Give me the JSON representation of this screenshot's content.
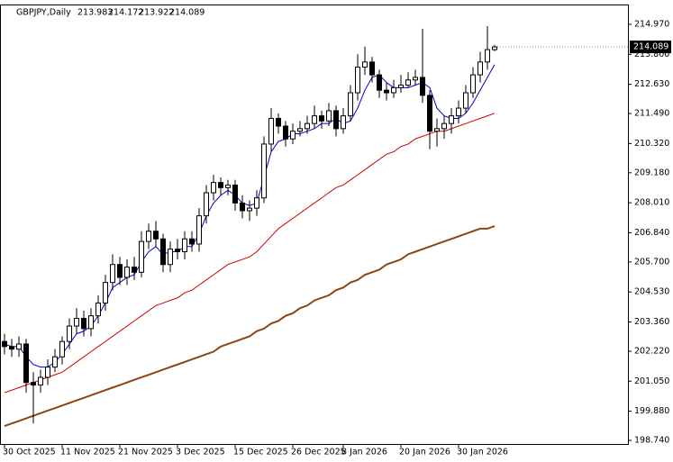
{
  "chart_data": {
    "type": "candlestick",
    "title": "GBPJPY,Daily",
    "categories": [
      "30 Oct 2025",
      null,
      null,
      null,
      null,
      null,
      null,
      null,
      "11 Nov 2025",
      null,
      null,
      null,
      null,
      null,
      null,
      null,
      "21 Nov 2025",
      null,
      null,
      null,
      null,
      null,
      null,
      null,
      "3 Dec 2025",
      null,
      null,
      null,
      null,
      null,
      null,
      null,
      "15 Dec 2025",
      null,
      null,
      null,
      null,
      null,
      null,
      null,
      "26 Dec 2025",
      null,
      null,
      null,
      null,
      null,
      null,
      "8 Jan 2026",
      null,
      null,
      null,
      null,
      null,
      null,
      null,
      "20 Jan 2026",
      null,
      null,
      null,
      null,
      null,
      null,
      null,
      "30 Jan 2026",
      null,
      null,
      null,
      null,
      null
    ],
    "open": [
      202.6,
      202.4,
      202.3,
      202.5,
      201.0,
      200.9,
      201.2,
      201.6,
      202.0,
      202.6,
      203.2,
      203.5,
      203.1,
      203.6,
      204.1,
      204.9,
      205.6,
      205.1,
      205.5,
      205.3,
      206.5,
      206.9,
      206.6,
      205.6,
      206.2,
      206.1,
      206.6,
      206.4,
      207.5,
      208.4,
      208.8,
      208.6,
      208.7,
      208.0,
      207.7,
      207.8,
      208.2,
      210.3,
      211.3,
      211.0,
      210.5,
      210.8,
      210.9,
      211.1,
      211.4,
      211.2,
      211.6,
      210.9,
      211.4,
      212.3,
      213.3,
      213.5,
      213.0,
      212.4,
      212.3,
      212.5,
      212.6,
      212.8,
      212.9,
      212.2,
      210.8,
      210.9,
      211.1,
      211.4,
      211.7,
      212.3,
      213.0,
      213.5,
      213.983
    ],
    "high": [
      202.9,
      202.7,
      202.8,
      202.7,
      201.4,
      201.5,
      201.9,
      202.3,
      202.8,
      203.5,
      203.9,
      203.8,
      203.9,
      204.4,
      205.2,
      206.0,
      205.9,
      205.8,
      205.9,
      206.9,
      207.2,
      207.3,
      206.8,
      206.5,
      206.6,
      206.9,
      206.9,
      207.8,
      208.7,
      209.1,
      209.0,
      208.9,
      208.9,
      208.3,
      208.1,
      208.5,
      210.6,
      211.7,
      211.5,
      211.2,
      211.1,
      211.2,
      211.4,
      211.8,
      211.6,
      211.9,
      211.8,
      211.7,
      212.6,
      213.8,
      214.1,
      213.7,
      213.2,
      212.7,
      212.8,
      213.0,
      213.1,
      213.2,
      214.8,
      212.4,
      211.3,
      211.4,
      211.7,
      212.0,
      212.6,
      213.3,
      213.9,
      214.9,
      214.172
    ],
    "low": [
      202.1,
      202.0,
      202.0,
      200.6,
      199.4,
      200.6,
      200.9,
      201.4,
      201.7,
      202.3,
      202.9,
      202.8,
      202.8,
      203.3,
      203.8,
      204.6,
      204.8,
      204.8,
      205.0,
      205.1,
      206.2,
      206.3,
      205.3,
      205.3,
      205.8,
      205.8,
      206.1,
      206.1,
      207.2,
      208.1,
      208.3,
      208.3,
      207.7,
      207.4,
      207.3,
      207.5,
      208.0,
      210.0,
      210.7,
      210.2,
      210.3,
      210.6,
      210.7,
      210.9,
      210.9,
      211.0,
      210.6,
      210.7,
      211.2,
      212.0,
      213.0,
      212.7,
      212.1,
      212.0,
      212.1,
      212.3,
      212.5,
      212.6,
      211.9,
      210.1,
      210.2,
      210.5,
      210.7,
      211.1,
      211.5,
      212.1,
      212.7,
      213.2,
      213.922
    ],
    "close": [
      202.4,
      202.3,
      202.5,
      201.0,
      200.9,
      201.2,
      201.6,
      202.0,
      202.6,
      203.2,
      203.5,
      203.1,
      203.6,
      204.1,
      204.9,
      205.6,
      205.1,
      205.5,
      205.3,
      206.5,
      206.9,
      206.6,
      205.6,
      206.2,
      206.1,
      206.6,
      206.4,
      207.5,
      208.4,
      208.8,
      208.6,
      208.7,
      208.0,
      207.7,
      207.8,
      208.2,
      210.3,
      211.3,
      211.0,
      210.5,
      210.8,
      210.9,
      211.1,
      211.4,
      211.2,
      211.6,
      210.9,
      211.4,
      212.3,
      213.3,
      213.5,
      213.0,
      212.4,
      212.3,
      212.5,
      212.6,
      212.8,
      212.9,
      212.2,
      210.8,
      210.9,
      211.1,
      211.4,
      211.7,
      212.3,
      213.0,
      213.5,
      213.983,
      214.089
    ],
    "series": [
      {
        "color": "#0000cd",
        "values": [
          202.5,
          202.4,
          202.4,
          202.0,
          201.7,
          201.6,
          201.6,
          201.8,
          202.1,
          202.5,
          202.9,
          203.0,
          203.2,
          203.6,
          204.1,
          204.7,
          204.9,
          205.1,
          205.2,
          205.7,
          206.1,
          206.3,
          206.0,
          206.1,
          206.1,
          206.3,
          206.3,
          206.8,
          207.5,
          208.0,
          208.3,
          208.5,
          208.3,
          208.0,
          207.9,
          208.0,
          209.0,
          210.0,
          210.4,
          210.5,
          210.7,
          210.7,
          210.8,
          210.9,
          211.1,
          211.1,
          211.3,
          211.1,
          211.2,
          211.7,
          212.4,
          212.9,
          213.0,
          212.7,
          212.5,
          212.5,
          212.5,
          212.6,
          212.7,
          212.5,
          211.7,
          211.4,
          211.3,
          211.3,
          211.5,
          211.9,
          212.4,
          212.9,
          213.4
        ]
      },
      {
        "color": "#cc0000",
        "values": [
          200.6,
          200.7,
          200.8,
          200.9,
          201.0,
          201.1,
          201.2,
          201.3,
          201.4,
          201.6,
          201.8,
          202.0,
          202.2,
          202.4,
          202.6,
          202.8,
          203.0,
          203.2,
          203.4,
          203.6,
          203.8,
          204.0,
          204.1,
          204.2,
          204.3,
          204.5,
          204.6,
          204.8,
          205.0,
          205.2,
          205.4,
          205.6,
          205.7,
          205.8,
          205.9,
          206.1,
          206.4,
          206.7,
          207.0,
          207.2,
          207.4,
          207.6,
          207.8,
          208.0,
          208.2,
          208.4,
          208.6,
          208.7,
          208.9,
          209.1,
          209.3,
          209.5,
          209.7,
          209.9,
          210.0,
          210.2,
          210.3,
          210.5,
          210.6,
          210.7,
          210.8,
          210.8,
          210.9,
          211.0,
          211.1,
          211.2,
          211.3,
          211.4,
          211.5
        ]
      },
      {
        "color": "#8b4513",
        "values": [
          199.3,
          199.4,
          199.5,
          199.6,
          199.7,
          199.8,
          199.9,
          200.0,
          200.1,
          200.2,
          200.3,
          200.4,
          200.5,
          200.6,
          200.7,
          200.8,
          200.9,
          201.0,
          201.1,
          201.2,
          201.3,
          201.4,
          201.5,
          201.6,
          201.7,
          201.8,
          201.9,
          202.0,
          202.1,
          202.2,
          202.4,
          202.5,
          202.6,
          202.7,
          202.8,
          203.0,
          203.1,
          203.3,
          203.4,
          203.6,
          203.7,
          203.9,
          204.0,
          204.2,
          204.3,
          204.4,
          204.6,
          204.7,
          204.9,
          205.0,
          205.2,
          205.3,
          205.4,
          205.6,
          205.7,
          205.8,
          206.0,
          206.1,
          206.2,
          206.3,
          206.4,
          206.5,
          206.6,
          206.7,
          206.8,
          206.9,
          207.0,
          207.0,
          207.1
        ]
      }
    ],
    "ylim": [
      198.6,
      215.743
    ],
    "yticks": [
      {
        "value": 214.97,
        "label": "214.970"
      },
      {
        "value": 213.8,
        "label": "213.800"
      },
      {
        "value": 212.63,
        "label": "212.630"
      },
      {
        "value": 211.49,
        "label": "211.490"
      },
      {
        "value": 210.32,
        "label": "210.320"
      },
      {
        "value": 209.18,
        "label": "209.180"
      },
      {
        "value": 208.01,
        "label": "208.010"
      },
      {
        "value": 206.84,
        "label": "206.840"
      },
      {
        "value": 205.7,
        "label": "205.700"
      },
      {
        "value": 204.53,
        "label": "204.530"
      },
      {
        "value": 203.36,
        "label": "203.360"
      },
      {
        "value": 202.22,
        "label": "202.220"
      },
      {
        "value": 201.05,
        "label": "201.050"
      },
      {
        "value": 199.88,
        "label": "199.880"
      },
      {
        "value": 198.74,
        "label": "198.740"
      }
    ]
  }
}
